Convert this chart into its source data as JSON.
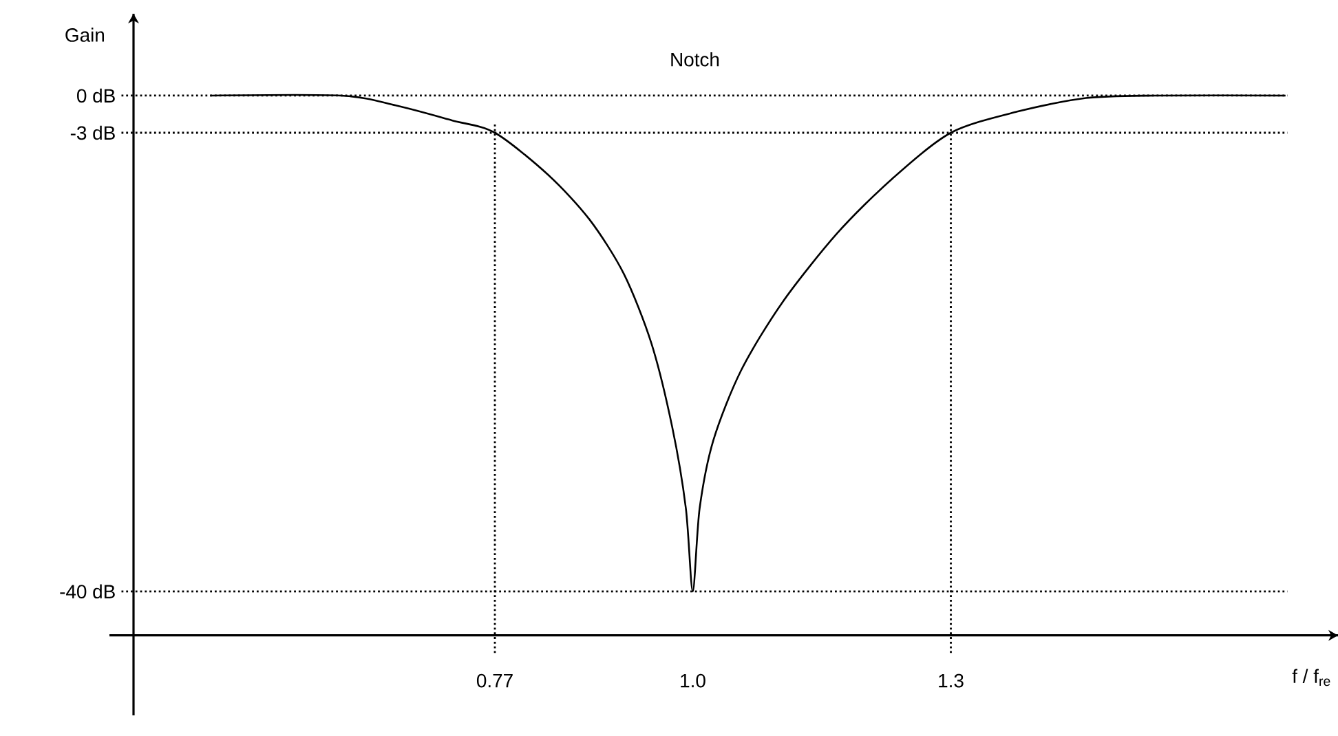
{
  "chart_data": {
    "type": "line",
    "title": "Notch",
    "xlabel": "f / f$_{re}$",
    "ylabel": "Gain",
    "xlim": [
      0.35,
      1.75
    ],
    "ylim": [
      -50,
      6.6
    ],
    "xticks": [
      0.77,
      {
        "value": 1,
        "label": "1.0"
      },
      1.3
    ],
    "yticks": [
      {
        "value": 0,
        "label": "0 dB"
      },
      {
        "value": -3,
        "label": "-3 dB"
      },
      {
        "value": -40,
        "label": "-40 dB"
      }
    ],
    "x": [
      0.439,
      0.591,
      0.655,
      0.72,
      0.77,
      0.832,
      0.88,
      0.92,
      0.952,
      0.976,
      0.992,
      1.0,
      1.008,
      1.024,
      1.056,
      1.104,
      1.168,
      1.232,
      1.3,
      1.377,
      1.457,
      1.537,
      1.689
    ],
    "series": [
      {
        "color": "#000000",
        "values": [
          0,
          0,
          -0.8,
          -2,
          -3,
          -6.4,
          -10,
          -14.4,
          -20,
          -26.7,
          -33.3,
          -40,
          -33.3,
          -27.8,
          -22.2,
          -16.7,
          -11.1,
          -6.7,
          -3,
          -1.3,
          -0.2,
          0,
          0
        ]
      }
    ],
    "ref_lines": [
      {
        "axis": "y",
        "value": 0,
        "line_style": "dotted"
      },
      {
        "axis": "y",
        "value": -3,
        "line_style": "dotted"
      },
      {
        "axis": "y",
        "value": -40,
        "line_style": "dotted"
      },
      {
        "axis": "x",
        "value": 0.77,
        "line_style": "dotted"
      },
      {
        "axis": "x",
        "value": 1.3,
        "line_style": "dotted"
      }
    ],
    "grid": false,
    "marker": "none",
    "line_style": "solid"
  }
}
